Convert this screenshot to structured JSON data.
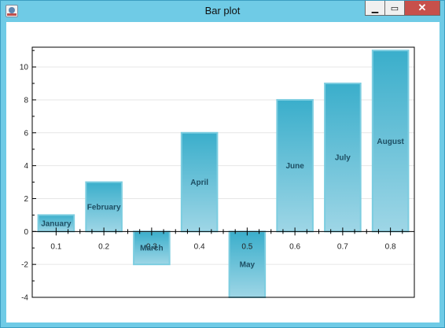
{
  "window": {
    "title": "Bar plot",
    "icon": "java-app-icon",
    "controls": {
      "minimize": "▁",
      "maximize": "▭",
      "close": "✕"
    }
  },
  "colors": {
    "bar_top": "#3aaecb",
    "bar_bottom": "#9ed6e6",
    "bar_border": "#7ccde0",
    "axis": "#000000",
    "grid": "#e6e6e6"
  },
  "chart_data": {
    "type": "bar",
    "x": [
      0.1,
      0.2,
      0.3,
      0.4,
      0.5,
      0.6,
      0.7,
      0.8
    ],
    "values": [
      1,
      3,
      -2,
      6,
      -4,
      8,
      9,
      11
    ],
    "bar_labels": [
      "January",
      "February",
      "March",
      "April",
      "May",
      "June",
      "July",
      "August"
    ],
    "xticks": [
      "0.1",
      "0.2",
      "0.3",
      "0.4",
      "0.5",
      "0.6",
      "0.7",
      "0.8"
    ],
    "yticks": [
      "-4",
      "-2",
      "0",
      "2",
      "4",
      "6",
      "8",
      "10"
    ],
    "xlim": [
      0.05,
      0.85
    ],
    "ylim": [
      -4,
      11.2
    ],
    "bar_width": 0.075,
    "grid": true,
    "title": "",
    "xlabel": "",
    "ylabel": ""
  }
}
